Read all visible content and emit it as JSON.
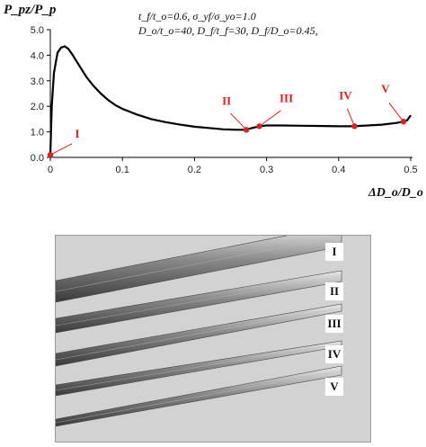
{
  "chart_data": {
    "type": "line",
    "ylabel": "P_pz/P_p",
    "xlabel": "ΔD_o/D_o",
    "xlim": [
      0,
      0.5
    ],
    "ylim": [
      0,
      5.0
    ],
    "x_ticks": [
      "0",
      "0.1",
      "0.2",
      "0.3",
      "0.4",
      "0.5"
    ],
    "y_ticks": [
      "0.0",
      "1.0",
      "2.0",
      "3.0",
      "4.0",
      "5.0"
    ],
    "annotation_lines": [
      "t_f/t_o=0.6, σ_yf/σ_yo=1.0",
      "D_o/t_o=40, D_f/t_f=30, D_f/D_o=0.45,"
    ],
    "series": [
      {
        "x": [
          0,
          0.002,
          0.005,
          0.01,
          0.015,
          0.02,
          0.025,
          0.03,
          0.04,
          0.05,
          0.06,
          0.07,
          0.08,
          0.09,
          0.1,
          0.12,
          0.14,
          0.16,
          0.18,
          0.2,
          0.22,
          0.24,
          0.26,
          0.27,
          0.28,
          0.29,
          0.3,
          0.32,
          0.35,
          0.38,
          0.4,
          0.42,
          0.44,
          0.46,
          0.48,
          0.49,
          0.495,
          0.5
        ],
        "y": [
          0.1,
          2.0,
          3.3,
          4.1,
          4.3,
          4.35,
          4.25,
          4.05,
          3.6,
          3.15,
          2.8,
          2.5,
          2.25,
          2.05,
          1.9,
          1.68,
          1.5,
          1.38,
          1.28,
          1.2,
          1.15,
          1.1,
          1.08,
          1.08,
          1.15,
          1.22,
          1.25,
          1.25,
          1.24,
          1.23,
          1.22,
          1.22,
          1.25,
          1.28,
          1.35,
          1.4,
          1.45,
          1.65
        ]
      }
    ],
    "markers": [
      {
        "label": "I",
        "x": 0.0,
        "y": 0.1
      },
      {
        "label": "II",
        "x": 0.272,
        "y": 1.08
      },
      {
        "label": "III",
        "x": 0.29,
        "y": 1.22
      },
      {
        "label": "IV",
        "x": 0.422,
        "y": 1.22
      },
      {
        "label": "V",
        "x": 0.49,
        "y": 1.4
      }
    ]
  },
  "simulation_panel": {
    "stages": [
      "I",
      "II",
      "III",
      "IV",
      "V"
    ]
  }
}
